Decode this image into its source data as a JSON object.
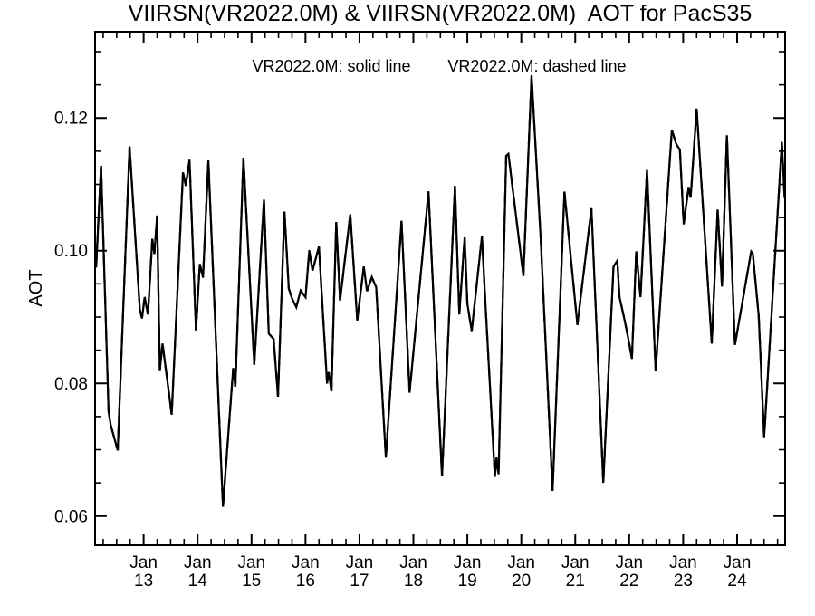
{
  "chart_data": {
    "type": "line",
    "title": "VIIRSN(VR2022.0M) & VIIRSN(VR2022.0M)  AOT for PacS35",
    "legend_items": [
      "VR2022.0M: solid line",
      "VR2022.0M: dashed line"
    ],
    "ylabel": "AOT",
    "xlabel": "",
    "region": "PacS35",
    "grid": false,
    "background": "#ffffff",
    "line_color": "#000000",
    "xlim": [
      12.1,
      24.89
    ],
    "ylim": [
      0.0556,
      0.133
    ],
    "x_minor_step": 0.25,
    "y_minor_step": 0.005,
    "x_ticks": [
      {
        "day": 13,
        "month": "Jan",
        "date": "13"
      },
      {
        "day": 14,
        "month": "Jan",
        "date": "14"
      },
      {
        "day": 15,
        "month": "Jan",
        "date": "15"
      },
      {
        "day": 16,
        "month": "Jan",
        "date": "16"
      },
      {
        "day": 17,
        "month": "Jan",
        "date": "17"
      },
      {
        "day": 18,
        "month": "Jan",
        "date": "18"
      },
      {
        "day": 19,
        "month": "Jan",
        "date": "19"
      },
      {
        "day": 20,
        "month": "Jan",
        "date": "20"
      },
      {
        "day": 21,
        "month": "Jan",
        "date": "21"
      },
      {
        "day": 22,
        "month": "Jan",
        "date": "22"
      },
      {
        "day": 23,
        "month": "Jan",
        "date": "23"
      },
      {
        "day": 24,
        "month": "Jan",
        "date": "24"
      }
    ],
    "y_ticks": [
      {
        "value": 0.06,
        "label": "0.06"
      },
      {
        "value": 0.08,
        "label": "0.08"
      },
      {
        "value": 0.1,
        "label": "0.10"
      },
      {
        "value": 0.12,
        "label": "0.12"
      }
    ],
    "x_days": [
      12.12,
      12.21,
      12.35,
      12.39,
      12.52,
      12.74,
      12.93,
      12.97,
      13.02,
      13.08,
      13.16,
      13.2,
      13.25,
      13.3,
      13.35,
      13.52,
      13.73,
      13.78,
      13.85,
      13.97,
      14.04,
      14.1,
      14.2,
      14.47,
      14.66,
      14.7,
      14.85,
      15.05,
      15.23,
      15.32,
      15.41,
      15.49,
      15.61,
      15.69,
      15.75,
      15.83,
      15.91,
      16.0,
      16.07,
      16.13,
      16.25,
      16.4,
      16.43,
      16.48,
      16.57,
      16.64,
      16.83,
      16.96,
      17.08,
      17.14,
      17.23,
      17.31,
      17.49,
      17.78,
      17.93,
      18.28,
      18.53,
      18.77,
      18.85,
      18.95,
      19.0,
      19.08,
      19.27,
      19.33,
      19.51,
      19.54,
      19.58,
      19.72,
      19.76,
      20.04,
      20.19,
      20.36,
      20.58,
      20.8,
      21.04,
      21.3,
      21.52,
      21.71,
      21.78,
      21.82,
      21.91,
      21.99,
      22.05,
      22.13,
      22.21,
      22.33,
      22.49,
      22.79,
      22.87,
      22.94,
      23.01,
      23.1,
      23.14,
      23.25,
      23.53,
      23.64,
      23.72,
      23.81,
      23.96,
      24.26,
      24.29,
      24.4,
      24.5,
      24.83,
      24.88
    ],
    "series": [
      {
        "name": "VR2022.0M",
        "line_style": "solid",
        "aot": [
          0.0976,
          0.1128,
          0.0758,
          0.0737,
          0.0699,
          0.1157,
          0.0912,
          0.0898,
          0.093,
          0.0904,
          0.1018,
          0.0995,
          0.1053,
          0.082,
          0.086,
          0.0753,
          0.1118,
          0.1098,
          0.1137,
          0.088,
          0.098,
          0.096,
          0.1136,
          0.0614,
          0.0823,
          0.0795,
          0.114,
          0.0828,
          0.1077,
          0.0875,
          0.0867,
          0.078,
          0.1059,
          0.0943,
          0.0928,
          0.0915,
          0.094,
          0.093,
          0.1,
          0.097,
          0.1006,
          0.08,
          0.0817,
          0.0788,
          0.1043,
          0.0925,
          0.1055,
          0.0895,
          0.0976,
          0.0939,
          0.096,
          0.0945,
          0.0688,
          0.1045,
          0.0786,
          0.1089,
          0.066,
          0.1098,
          0.0904,
          0.102,
          0.092,
          0.0879,
          0.1022,
          0.093,
          0.0659,
          0.0689,
          0.0663,
          0.1143,
          0.1146,
          0.0962,
          0.1264,
          0.1018,
          0.0638,
          0.1089,
          0.0888,
          0.1064,
          0.065,
          0.0976,
          0.0985,
          0.093,
          0.0897,
          0.0865,
          0.0837,
          0.0999,
          0.093,
          0.1122,
          0.0819,
          0.1182,
          0.1161,
          0.1152,
          0.104,
          0.1096,
          0.108,
          0.1214,
          0.086,
          0.1062,
          0.0946,
          0.1174,
          0.0858,
          0.0999,
          0.0996,
          0.0902,
          0.0719,
          0.1163,
          0.108
        ]
      },
      {
        "name": "VR2022.0M",
        "line_style": "dashed",
        "aot": [
          0.0976,
          0.1128,
          0.0758,
          0.0737,
          0.0699,
          0.1157,
          0.0912,
          0.0898,
          0.093,
          0.0904,
          0.1018,
          0.0995,
          0.1053,
          0.082,
          0.086,
          0.0753,
          0.1118,
          0.1098,
          0.1137,
          0.088,
          0.098,
          0.096,
          0.1136,
          0.0614,
          0.0823,
          0.0795,
          0.114,
          0.0828,
          0.1077,
          0.0875,
          0.0867,
          0.078,
          0.1059,
          0.0943,
          0.0928,
          0.0915,
          0.094,
          0.093,
          0.1,
          0.097,
          0.1006,
          0.08,
          0.0817,
          0.0788,
          0.1043,
          0.0925,
          0.1055,
          0.0895,
          0.0976,
          0.0939,
          0.096,
          0.0945,
          0.0688,
          0.1045,
          0.0786,
          0.1089,
          0.066,
          0.1098,
          0.0904,
          0.102,
          0.092,
          0.0879,
          0.1022,
          0.093,
          0.0659,
          0.0689,
          0.0663,
          0.1143,
          0.1146,
          0.0962,
          0.1264,
          0.1018,
          0.0638,
          0.1089,
          0.0888,
          0.1064,
          0.065,
          0.0976,
          0.0985,
          0.093,
          0.0897,
          0.0865,
          0.0837,
          0.0999,
          0.093,
          0.1122,
          0.0819,
          0.1182,
          0.1161,
          0.1152,
          0.104,
          0.1096,
          0.108,
          0.1214,
          0.086,
          0.1062,
          0.0946,
          0.1174,
          0.0858,
          0.0999,
          0.0996,
          0.0902,
          0.0719,
          0.1163,
          0.108
        ]
      }
    ]
  }
}
